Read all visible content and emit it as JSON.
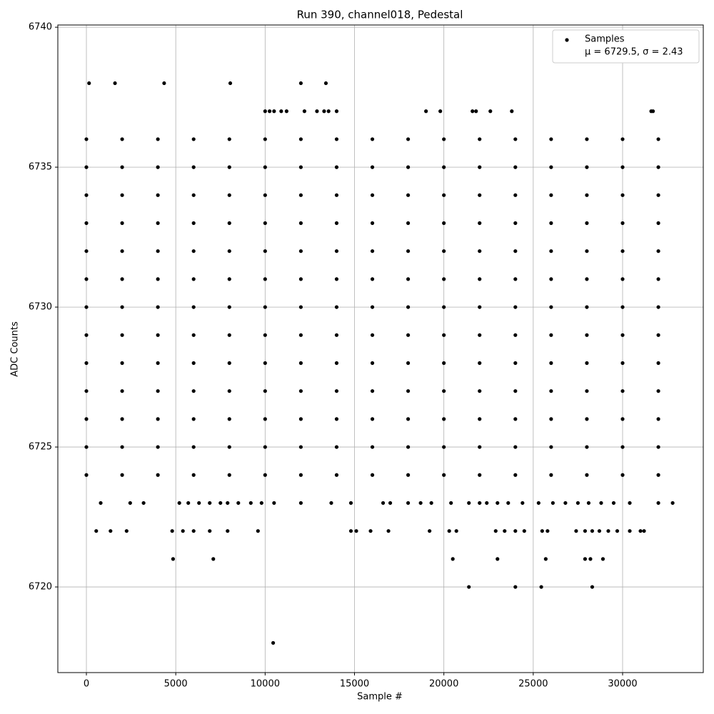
{
  "chart_data": {
    "type": "scatter",
    "title": "Run 390, channel018, Pedestal",
    "xlabel": "Sample #",
    "ylabel": "ADC Counts",
    "xlim": [
      -1598,
      34514
    ],
    "ylim": [
      6716.94,
      6740.08
    ],
    "xticks": [
      0,
      5000,
      10000,
      15000,
      20000,
      25000,
      30000
    ],
    "yticks": [
      6720,
      6725,
      6730,
      6735,
      6740
    ],
    "grid": true,
    "legend": "upper right",
    "legend_note": "μ = 6729.5, σ = 2.43",
    "series": [
      {
        "name": "Samples",
        "color": "#000000",
        "x": [
          0,
          2000,
          4000,
          6000,
          8000,
          10000,
          12000,
          14000,
          16000,
          18000,
          20000,
          22000,
          24000,
          26000,
          28000,
          30000,
          32000,
          0,
          2000,
          4000,
          6000,
          8000,
          10000,
          12000,
          14000,
          16000,
          18000,
          20000,
          22000,
          24000,
          26000,
          28000,
          30000,
          32000,
          0,
          2000,
          4000,
          6000,
          8000,
          10000,
          12000,
          14000,
          16000,
          18000,
          20000,
          22000,
          24000,
          26000,
          28000,
          30000,
          32000,
          0,
          2000,
          4000,
          6000,
          8000,
          10000,
          12000,
          14000,
          16000,
          18000,
          20000,
          22000,
          24000,
          26000,
          28000,
          30000,
          32000,
          0,
          2000,
          4000,
          6000,
          8000,
          10000,
          12000,
          14000,
          16000,
          18000,
          20000,
          22000,
          24000,
          26000,
          28000,
          30000,
          32000,
          0,
          2000,
          4000,
          6000,
          8000,
          10000,
          12000,
          14000,
          16000,
          18000,
          20000,
          22000,
          24000,
          26000,
          28000,
          30000,
          32000,
          0,
          2000,
          4000,
          6000,
          8000,
          10000,
          12000,
          14000,
          16000,
          18000,
          20000,
          22000,
          24000,
          26000,
          28000,
          30000,
          32000,
          0,
          2000,
          4000,
          6000,
          8000,
          10000,
          12000,
          14000,
          16000,
          18000,
          20000,
          22000,
          24000,
          26000,
          28000,
          30000,
          32000,
          0,
          2000,
          4000,
          6000,
          8000,
          10000,
          12000,
          14000,
          16000,
          18000,
          20000,
          22000,
          24000,
          26000,
          28000,
          30000,
          32000,
          0,
          2000,
          4000,
          6000,
          8000,
          10000,
          12000,
          14000,
          16000,
          18000,
          20000,
          22000,
          24000,
          26000,
          28000,
          30000,
          32000,
          0,
          2000,
          4000,
          6000,
          8000,
          10000,
          12000,
          14000,
          16000,
          18000,
          20000,
          22000,
          24000,
          26000,
          28000,
          30000,
          32000,
          0,
          2000,
          4000,
          6000,
          8000,
          10000,
          12000,
          14000,
          16000,
          18000,
          20000,
          22000,
          24000,
          26000,
          28000,
          30000,
          32000,
          0,
          2000,
          4000,
          6000,
          8000,
          10000,
          12000,
          14000,
          16000,
          18000,
          20000,
          22000,
          24000,
          26000,
          28000,
          30000,
          32000,
          150,
          1600,
          4350,
          8050,
          12000,
          13400,
          10000,
          10250,
          10500,
          10900,
          11200,
          12200,
          12900,
          13300,
          13550,
          14000,
          19000,
          19800,
          21600,
          21800,
          22600,
          23800,
          31600,
          31700,
          800,
          2450,
          3200,
          5200,
          5700,
          6300,
          6900,
          7500,
          7900,
          8500,
          9200,
          9800,
          10500,
          12000,
          13700,
          14800,
          16600,
          17000,
          18000,
          18700,
          19300,
          20400,
          21400,
          22000,
          22400,
          23000,
          23600,
          24400,
          25300,
          26100,
          26800,
          27500,
          28100,
          28800,
          29500,
          30400,
          32000,
          32800,
          550,
          1350,
          2250,
          4800,
          5400,
          6000,
          6900,
          7900,
          9600,
          14800,
          15100,
          15900,
          16900,
          19200,
          20300,
          20700,
          22900,
          23400,
          24000,
          24500,
          25500,
          25800,
          27400,
          27900,
          28300,
          28700,
          29200,
          29700,
          30400,
          31000,
          31200,
          4850,
          7100,
          20500,
          23000,
          25700,
          27900,
          28200,
          28900,
          21400,
          24000,
          25450,
          28300,
          10450
        ],
        "values": [
          6736,
          6736,
          6736,
          6736,
          6736,
          6736,
          6736,
          6736,
          6736,
          6736,
          6736,
          6736,
          6736,
          6736,
          6736,
          6736,
          6736,
          6735,
          6735,
          6735,
          6735,
          6735,
          6735,
          6735,
          6735,
          6735,
          6735,
          6735,
          6735,
          6735,
          6735,
          6735,
          6735,
          6735,
          6734,
          6734,
          6734,
          6734,
          6734,
          6734,
          6734,
          6734,
          6734,
          6734,
          6734,
          6734,
          6734,
          6734,
          6734,
          6734,
          6734,
          6733,
          6733,
          6733,
          6733,
          6733,
          6733,
          6733,
          6733,
          6733,
          6733,
          6733,
          6733,
          6733,
          6733,
          6733,
          6733,
          6733,
          6732,
          6732,
          6732,
          6732,
          6732,
          6732,
          6732,
          6732,
          6732,
          6732,
          6732,
          6732,
          6732,
          6732,
          6732,
          6732,
          6732,
          6731,
          6731,
          6731,
          6731,
          6731,
          6731,
          6731,
          6731,
          6731,
          6731,
          6731,
          6731,
          6731,
          6731,
          6731,
          6731,
          6731,
          6730,
          6730,
          6730,
          6730,
          6730,
          6730,
          6730,
          6730,
          6730,
          6730,
          6730,
          6730,
          6730,
          6730,
          6730,
          6730,
          6730,
          6729,
          6729,
          6729,
          6729,
          6729,
          6729,
          6729,
          6729,
          6729,
          6729,
          6729,
          6729,
          6729,
          6729,
          6729,
          6729,
          6729,
          6728,
          6728,
          6728,
          6728,
          6728,
          6728,
          6728,
          6728,
          6728,
          6728,
          6728,
          6728,
          6728,
          6728,
          6728,
          6728,
          6728,
          6727,
          6727,
          6727,
          6727,
          6727,
          6727,
          6727,
          6727,
          6727,
          6727,
          6727,
          6727,
          6727,
          6727,
          6727,
          6727,
          6727,
          6726,
          6726,
          6726,
          6726,
          6726,
          6726,
          6726,
          6726,
          6726,
          6726,
          6726,
          6726,
          6726,
          6726,
          6726,
          6726,
          6726,
          6725,
          6725,
          6725,
          6725,
          6725,
          6725,
          6725,
          6725,
          6725,
          6725,
          6725,
          6725,
          6725,
          6725,
          6725,
          6725,
          6725,
          6724,
          6724,
          6724,
          6724,
          6724,
          6724,
          6724,
          6724,
          6724,
          6724,
          6724,
          6724,
          6724,
          6724,
          6724,
          6724,
          6724,
          6738,
          6738,
          6738,
          6738,
          6738,
          6738,
          6737,
          6737,
          6737,
          6737,
          6737,
          6737,
          6737,
          6737,
          6737,
          6737,
          6737,
          6737,
          6737,
          6737,
          6737,
          6737,
          6737,
          6737,
          6723,
          6723,
          6723,
          6723,
          6723,
          6723,
          6723,
          6723,
          6723,
          6723,
          6723,
          6723,
          6723,
          6723,
          6723,
          6723,
          6723,
          6723,
          6723,
          6723,
          6723,
          6723,
          6723,
          6723,
          6723,
          6723,
          6723,
          6723,
          6723,
          6723,
          6723,
          6723,
          6723,
          6723,
          6723,
          6723,
          6723,
          6723,
          6722,
          6722,
          6722,
          6722,
          6722,
          6722,
          6722,
          6722,
          6722,
          6722,
          6722,
          6722,
          6722,
          6722,
          6722,
          6722,
          6722,
          6722,
          6722,
          6722,
          6722,
          6722,
          6722,
          6722,
          6722,
          6722,
          6722,
          6722,
          6722,
          6722,
          6722,
          6721,
          6721,
          6721,
          6721,
          6721,
          6721,
          6721,
          6721,
          6720,
          6720,
          6720,
          6720,
          6718
        ]
      }
    ]
  }
}
